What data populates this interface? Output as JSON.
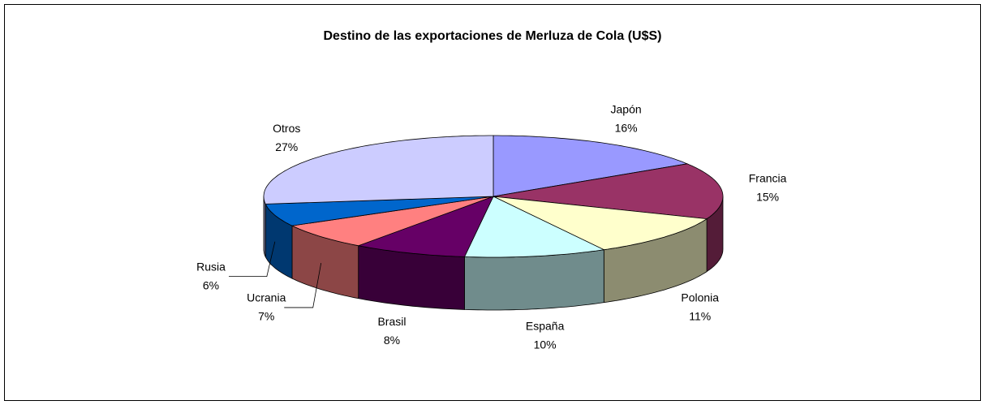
{
  "chart_data": {
    "type": "pie3d",
    "title": "Destino de las exportaciones de Merluza de Cola (U$S)",
    "categories": [
      "Japón",
      "Francia",
      "Polonia",
      "España",
      "Brasil",
      "Ucrania",
      "Rusia",
      "Otros"
    ],
    "values": [
      16,
      15,
      11,
      10,
      8,
      7,
      6,
      27
    ],
    "value_labels": [
      "16%",
      "15%",
      "11%",
      "10%",
      "8%",
      "7%",
      "6%",
      "27%"
    ],
    "colors": [
      "#9999ff",
      "#993366",
      "#ffffcc",
      "#ccffff",
      "#660066",
      "#ff8080",
      "#0066cc",
      "#ccccff"
    ]
  }
}
